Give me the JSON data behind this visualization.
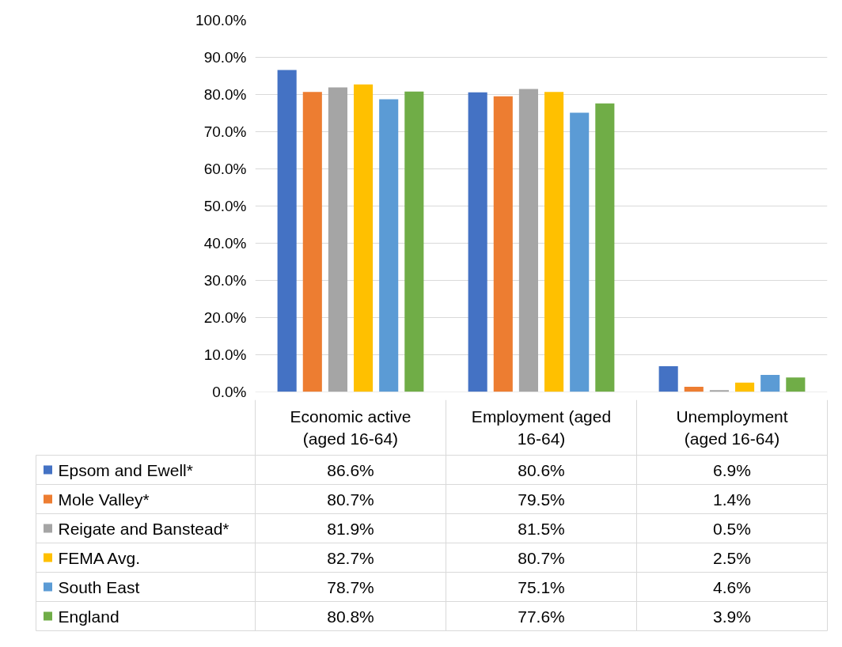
{
  "chart_data": {
    "type": "bar",
    "categories": [
      "Economic active (aged 16-64)",
      "Employment (aged 16-64)",
      "Unemployment (aged 16-64)"
    ],
    "series": [
      {
        "name": "Epsom and Ewell*",
        "color": "#4472c4",
        "values": [
          86.6,
          80.6,
          6.9
        ],
        "value_labels": [
          "86.6%",
          "80.6%",
          "6.9%"
        ]
      },
      {
        "name": "Mole Valley*",
        "color": "#ed7d31",
        "values": [
          80.7,
          79.5,
          1.4
        ],
        "value_labels": [
          "80.7%",
          "79.5%",
          "1.4%"
        ]
      },
      {
        "name": "Reigate and Banstead*",
        "color": "#a5a5a5",
        "values": [
          81.9,
          81.5,
          0.5
        ],
        "value_labels": [
          "81.9%",
          "81.5%",
          "0.5%"
        ]
      },
      {
        "name": "FEMA Avg.",
        "color": "#ffc000",
        "values": [
          82.7,
          80.7,
          2.5
        ],
        "value_labels": [
          "82.7%",
          "80.7%",
          "2.5%"
        ]
      },
      {
        "name": "South East",
        "color": "#5b9bd5",
        "values": [
          78.7,
          75.1,
          4.6
        ],
        "value_labels": [
          "78.7%",
          "75.1%",
          "4.6%"
        ]
      },
      {
        "name": "England",
        "color": "#70ad47",
        "values": [
          80.8,
          77.6,
          3.9
        ],
        "value_labels": [
          "80.8%",
          "77.6%",
          "3.9%"
        ]
      }
    ],
    "ylim": [
      0,
      100
    ],
    "yticks": [
      {
        "value": 0,
        "label": "0.0%"
      },
      {
        "value": 10,
        "label": "10.0%"
      },
      {
        "value": 20,
        "label": "20.0%"
      },
      {
        "value": 30,
        "label": "30.0%"
      },
      {
        "value": 40,
        "label": "40.0%"
      },
      {
        "value": 50,
        "label": "50.0%"
      },
      {
        "value": 60,
        "label": "60.0%"
      },
      {
        "value": 70,
        "label": "70.0%"
      },
      {
        "value": 80,
        "label": "80.0%"
      },
      {
        "value": 90,
        "label": "90.0%"
      },
      {
        "value": 100,
        "label": "100.0%"
      }
    ],
    "grid": "y",
    "legend": "bottom"
  }
}
